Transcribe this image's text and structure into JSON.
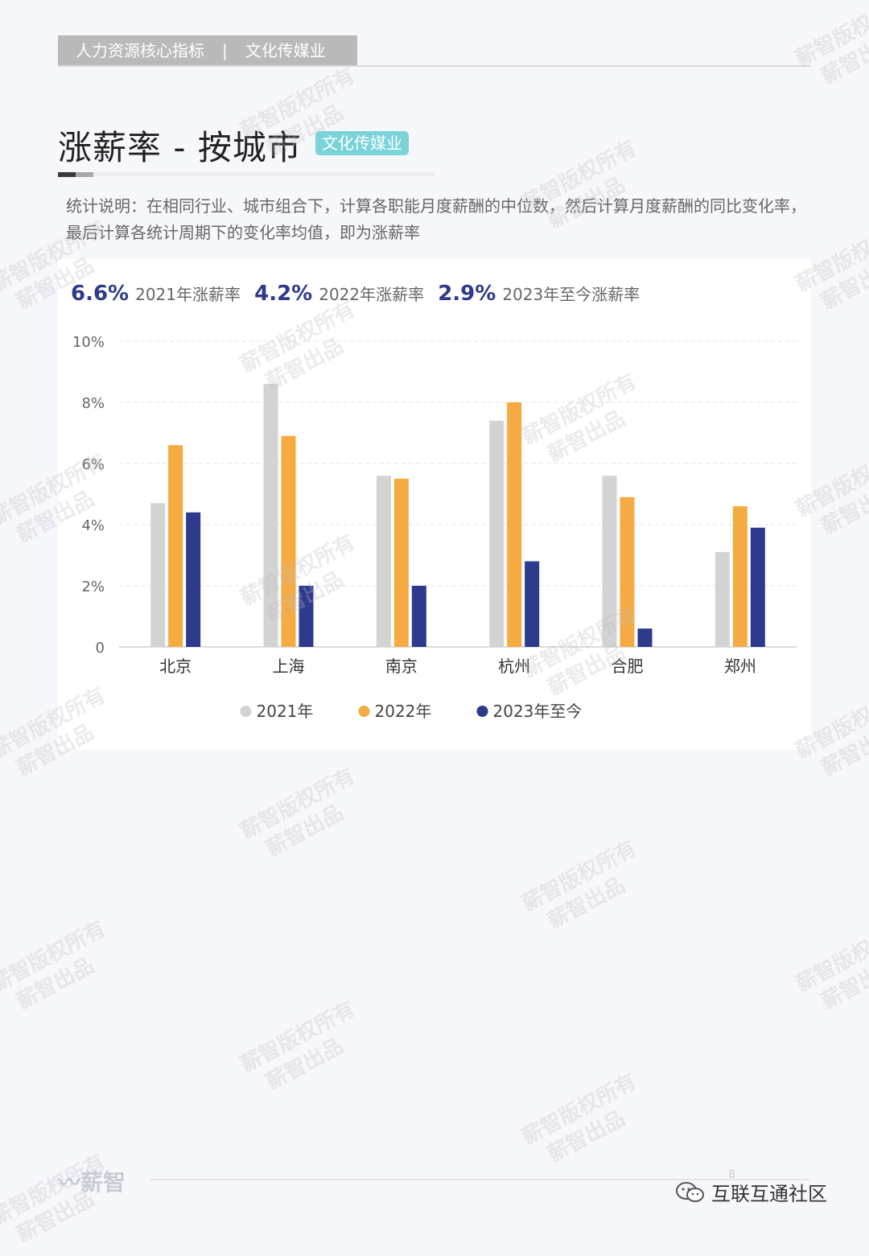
{
  "header": {
    "section": "人力资源核心指标",
    "separator": "|",
    "industry": "文化传媒业"
  },
  "title": "涨薪率 - 按城市",
  "tag": "文化传媒业",
  "description": "统计说明：在相同行业、城市组合下，计算各职能月度薪酬的中位数，然后计算月度薪酬的同比变化率，最后计算各统计周期下的变化率均值，即为涨薪率",
  "kpis": [
    {
      "value": "6.6%",
      "label": "2021年涨薪率"
    },
    {
      "value": "4.2%",
      "label": "2022年涨薪率"
    },
    {
      "value": "2.9%",
      "label": "2023年至今涨薪率"
    }
  ],
  "chart_data": {
    "type": "bar",
    "title": "",
    "xlabel": "",
    "ylabel": "",
    "categories": [
      "北京",
      "上海",
      "南京",
      "杭州",
      "合肥",
      "郑州"
    ],
    "series": [
      {
        "name": "2021年",
        "color": "#d3d3d3",
        "values": [
          4.7,
          8.6,
          5.6,
          7.4,
          5.6,
          3.1
        ]
      },
      {
        "name": "2022年",
        "color": "#f5ab42",
        "values": [
          6.6,
          6.9,
          5.5,
          8.0,
          4.9,
          4.6
        ]
      },
      {
        "name": "2023年至今",
        "color": "#2e3a8c",
        "values": [
          4.4,
          2.0,
          2.0,
          2.8,
          0.6,
          3.9
        ]
      }
    ],
    "ylim": [
      0,
      10
    ],
    "yticks": [
      0,
      2,
      4,
      6,
      8,
      10
    ],
    "ytick_labels": [
      "0",
      "2%",
      "4%",
      "6%",
      "8%",
      "10%"
    ],
    "grid": true,
    "legend": "bottom"
  },
  "footer": {
    "logo": "薪智",
    "page": "8",
    "account": "互联互通社区"
  },
  "watermark": {
    "line1": "薪智版权所有",
    "line2": "薪智出品"
  }
}
